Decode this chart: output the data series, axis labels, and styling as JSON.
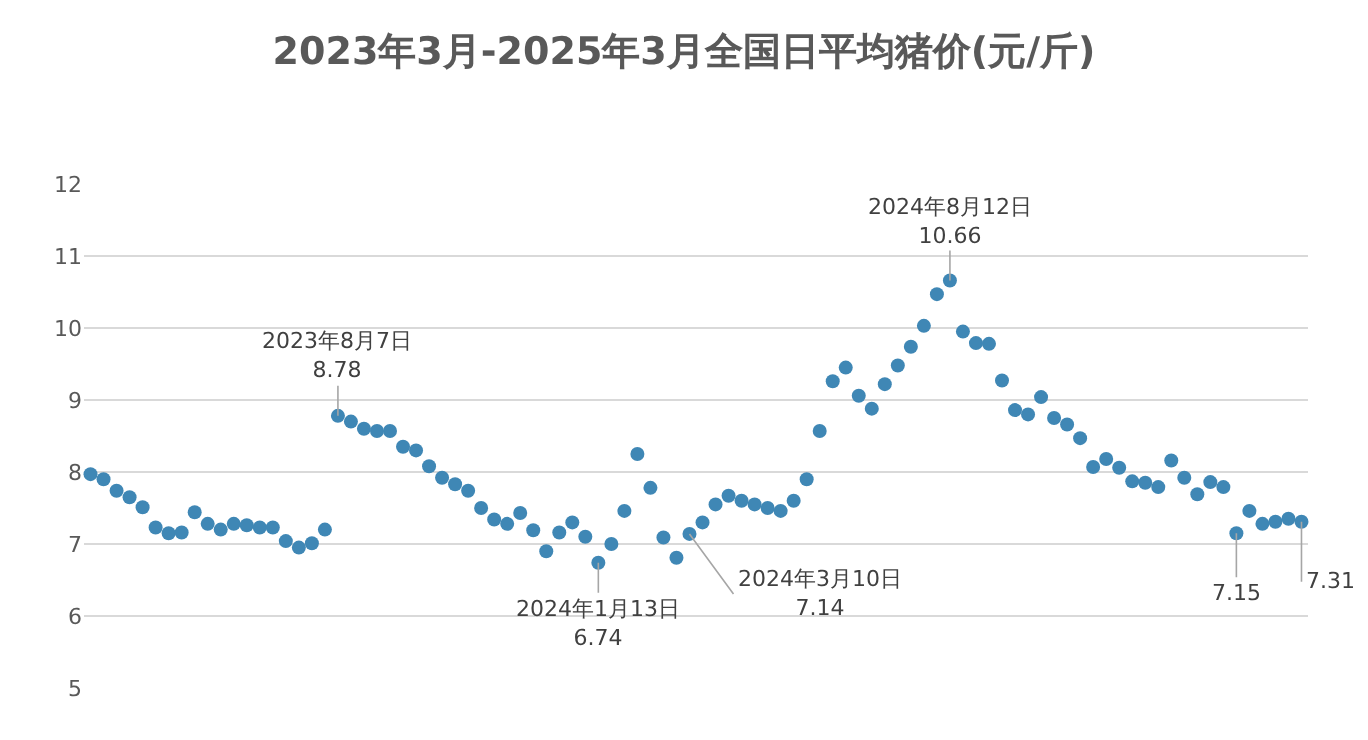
{
  "chart_data": {
    "type": "scatter",
    "title": "2023年3月-2025年3月全国日平均猪价(元/斤)",
    "categories": [
      null,
      null,
      null,
      null,
      null,
      null,
      null,
      null,
      null,
      null,
      null,
      null,
      null,
      null,
      null,
      null,
      null,
      null,
      null,
      null,
      null,
      null,
      null,
      null,
      null,
      null,
      null,
      null,
      null,
      null,
      null,
      null,
      null,
      null,
      null,
      null,
      null,
      null,
      null,
      null,
      null,
      null,
      null,
      null,
      null,
      null,
      null,
      null,
      null,
      null,
      null,
      null,
      null,
      null,
      null,
      null,
      null,
      null,
      null,
      null,
      null,
      null,
      null,
      null,
      null,
      null,
      null,
      null,
      null,
      null,
      null,
      null,
      null,
      null,
      null,
      null,
      null,
      null,
      null,
      null,
      null,
      null,
      null,
      null,
      null,
      null,
      null,
      null,
      null,
      null,
      null,
      null,
      null,
      null
    ],
    "series": [
      {
        "color": "#3f87b5",
        "values": [
          7.97,
          7.9,
          7.74,
          7.65,
          7.51,
          7.23,
          7.15,
          7.16,
          7.44,
          7.28,
          7.2,
          7.28,
          7.26,
          7.23,
          7.23,
          7.04,
          6.95,
          7.01,
          7.2,
          8.78,
          8.7,
          8.6,
          8.57,
          8.57,
          8.35,
          8.3,
          8.08,
          7.92,
          7.83,
          7.74,
          7.5,
          7.34,
          7.28,
          7.43,
          7.19,
          6.9,
          7.16,
          7.3,
          7.1,
          6.74,
          7.0,
          7.46,
          8.25,
          7.78,
          7.09,
          6.81,
          7.14,
          7.3,
          7.55,
          7.67,
          7.6,
          7.55,
          7.5,
          7.46,
          7.6,
          7.9,
          8.57,
          9.26,
          9.45,
          9.06,
          8.88,
          9.22,
          9.48,
          9.74,
          10.03,
          10.47,
          10.66,
          9.95,
          9.79,
          9.78,
          9.27,
          8.86,
          8.8,
          9.04,
          8.75,
          8.66,
          8.47,
          8.07,
          8.18,
          8.06,
          7.87,
          7.85,
          7.79,
          8.16,
          7.92,
          7.69,
          7.86,
          7.79,
          7.15,
          7.46,
          7.28,
          7.31,
          7.35,
          7.31
        ],
        "value_labels": [
          null,
          null,
          null,
          null,
          null,
          null,
          null,
          null,
          null,
          null,
          null,
          null,
          null,
          null,
          null,
          null,
          null,
          null,
          null,
          "2023年8月7日\n8.78",
          null,
          null,
          null,
          null,
          null,
          null,
          null,
          null,
          null,
          null,
          null,
          null,
          null,
          null,
          null,
          null,
          null,
          null,
          null,
          "2024年1月13日\n6.74",
          null,
          null,
          null,
          null,
          null,
          null,
          "2024年3月10日\n7.14",
          null,
          null,
          null,
          null,
          null,
          null,
          null,
          null,
          null,
          null,
          null,
          null,
          null,
          null,
          null,
          null,
          null,
          null,
          null,
          "2024年8月12日\n10.66",
          null,
          null,
          null,
          null,
          null,
          null,
          null,
          null,
          null,
          null,
          null,
          null,
          null,
          null,
          null,
          null,
          null,
          null,
          null,
          null,
          null,
          "7.15",
          null,
          null,
          null,
          null,
          "7.31"
        ]
      }
    ],
    "ylim": [
      5,
      12
    ],
    "yticks": [
      5,
      6,
      7,
      8,
      9,
      10,
      11,
      12
    ],
    "tick_labels": "y",
    "grid": "y",
    "marker": "circle"
  }
}
